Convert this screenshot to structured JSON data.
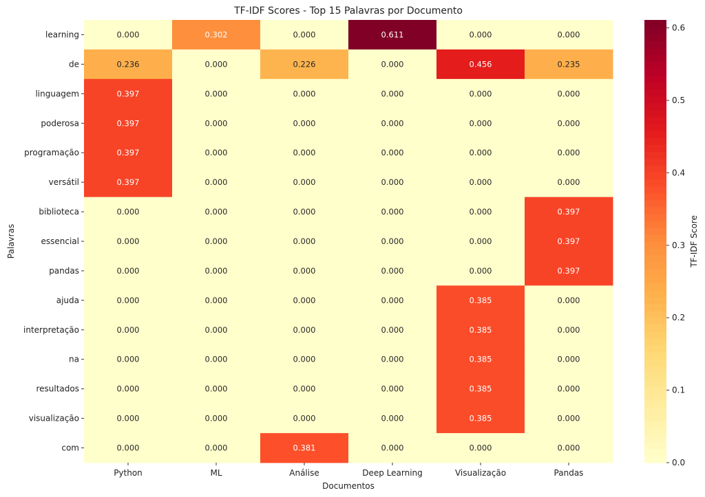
{
  "chart_data": {
    "type": "heatmap",
    "title": "TF-IDF Scores - Top 15 Palavras por Documento",
    "xlabel": "Documentos",
    "ylabel": "Palavras",
    "colorbar_label": "TF-IDF Score",
    "colormap": "YlOrRd",
    "vmin": 0.0,
    "vmax": 0.611,
    "colorbar_ticks": [
      "0.0",
      "0.1",
      "0.2",
      "0.3",
      "0.4",
      "0.5",
      "0.6"
    ],
    "columns": [
      "Python",
      "ML",
      "Análise",
      "Deep Learning",
      "Visualização",
      "Pandas"
    ],
    "rows": [
      "learning",
      "de",
      "linguagem",
      "poderosa",
      "programação",
      "versátil",
      "biblioteca",
      "essencial",
      "pandas",
      "ajuda",
      "interpretação",
      "na",
      "resultados",
      "visualização",
      "com"
    ],
    "values": [
      [
        0.0,
        0.302,
        0.0,
        0.611,
        0.0,
        0.0
      ],
      [
        0.236,
        0.0,
        0.226,
        0.0,
        0.456,
        0.235
      ],
      [
        0.397,
        0.0,
        0.0,
        0.0,
        0.0,
        0.0
      ],
      [
        0.397,
        0.0,
        0.0,
        0.0,
        0.0,
        0.0
      ],
      [
        0.397,
        0.0,
        0.0,
        0.0,
        0.0,
        0.0
      ],
      [
        0.397,
        0.0,
        0.0,
        0.0,
        0.0,
        0.0
      ],
      [
        0.0,
        0.0,
        0.0,
        0.0,
        0.0,
        0.397
      ],
      [
        0.0,
        0.0,
        0.0,
        0.0,
        0.0,
        0.397
      ],
      [
        0.0,
        0.0,
        0.0,
        0.0,
        0.0,
        0.397
      ],
      [
        0.0,
        0.0,
        0.0,
        0.0,
        0.385,
        0.0
      ],
      [
        0.0,
        0.0,
        0.0,
        0.0,
        0.385,
        0.0
      ],
      [
        0.0,
        0.0,
        0.0,
        0.0,
        0.385,
        0.0
      ],
      [
        0.0,
        0.0,
        0.0,
        0.0,
        0.385,
        0.0
      ],
      [
        0.0,
        0.0,
        0.0,
        0.0,
        0.385,
        0.0
      ],
      [
        0.0,
        0.0,
        0.381,
        0.0,
        0.0,
        0.0
      ]
    ]
  }
}
